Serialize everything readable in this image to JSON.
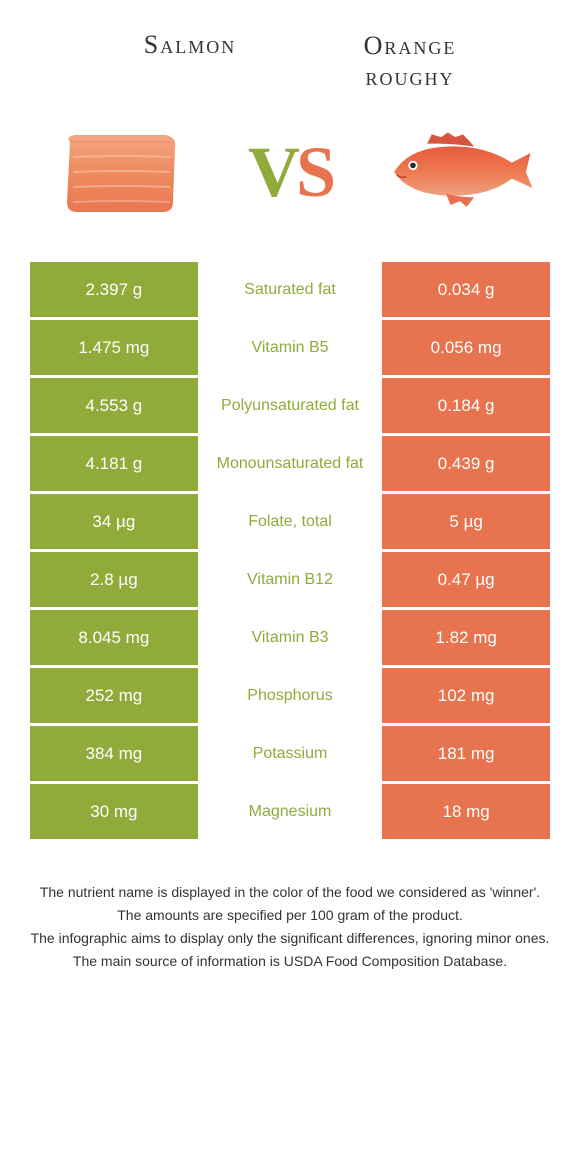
{
  "header": {
    "left_title": "Salmon",
    "right_title_line1": "Orange",
    "right_title_line2": "roughy"
  },
  "vs": {
    "text": "VS",
    "left_color": "#90ab3a",
    "right_color": "#e8734f"
  },
  "colors": {
    "salmon": "#90ab3a",
    "orange_roughy": "#e8734f"
  },
  "rows": [
    {
      "left": "2.397 g",
      "label": "Saturated fat",
      "right": "0.034 g",
      "winner": "salmon"
    },
    {
      "left": "1.475 mg",
      "label": "Vitamin B5",
      "right": "0.056 mg",
      "winner": "salmon"
    },
    {
      "left": "4.553 g",
      "label": "Polyunsaturated fat",
      "right": "0.184 g",
      "winner": "salmon"
    },
    {
      "left": "4.181 g",
      "label": "Monounsaturated fat",
      "right": "0.439 g",
      "winner": "salmon"
    },
    {
      "left": "34 µg",
      "label": "Folate, total",
      "right": "5 µg",
      "winner": "salmon"
    },
    {
      "left": "2.8 µg",
      "label": "Vitamin B12",
      "right": "0.47 µg",
      "winner": "salmon"
    },
    {
      "left": "8.045 mg",
      "label": "Vitamin B3",
      "right": "1.82 mg",
      "winner": "salmon"
    },
    {
      "left": "252 mg",
      "label": "Phosphorus",
      "right": "102 mg",
      "winner": "salmon"
    },
    {
      "left": "384 mg",
      "label": "Potassium",
      "right": "181 mg",
      "winner": "salmon"
    },
    {
      "left": "30 mg",
      "label": "Magnesium",
      "right": "18 mg",
      "winner": "salmon"
    }
  ],
  "footer": {
    "line1": "The nutrient name is displayed in the color of the food we considered as 'winner'.",
    "line2": "The amounts are specified per 100 gram of the product.",
    "line3": "The infographic aims to display only the significant differences, ignoring minor ones.",
    "line4": "The main source of information is USDA Food Composition Database."
  }
}
